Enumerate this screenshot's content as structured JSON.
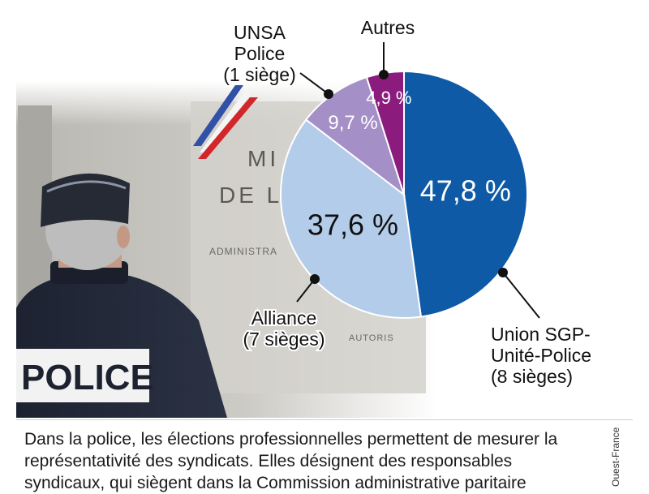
{
  "chart_data": {
    "type": "pie",
    "slices": [
      {
        "value": 47.8,
        "pct_label": "47,8 %",
        "color": "#0e5aa7",
        "label_color": "#ffffff",
        "callout": [
          "Union SGP-",
          "Unité-Police",
          "(8 sièges)"
        ]
      },
      {
        "value": 37.6,
        "pct_label": "37,6 %",
        "color": "#b3cce9",
        "label_color": "#111111",
        "callout": [
          "Alliance",
          "(7 sièges)"
        ]
      },
      {
        "value": 9.7,
        "pct_label": "9,7 %",
        "color": "#a48fc7",
        "label_color": "#ffffff",
        "callout": [
          "UNSA",
          "Police",
          "(1 siège)"
        ]
      },
      {
        "value": 4.9,
        "pct_label": "4,9 %",
        "color": "#8c1b7e",
        "label_color": "#ffffff",
        "callout": [
          "Autres"
        ]
      }
    ]
  },
  "photo": {
    "patch_text": "POLICE",
    "sign_lines": [
      "MI",
      "DE L"
    ],
    "sign_small": [
      "ADMINISTRA",
      "AUTORIS"
    ]
  },
  "caption": {
    "text": "Dans la police, les élections professionnelles permettent de mesurer la représentativité des syndicats. Elles désignent des responsables syndicaux, qui siègent dans la Commission administrative paritaire"
  },
  "credit": "Ouest-France"
}
